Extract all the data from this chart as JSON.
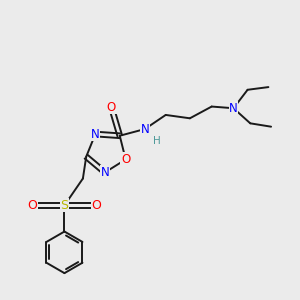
{
  "bg_color": "#ebebeb",
  "bond_color": "#1a1a1a",
  "atom_colors": {
    "O": "#ff0000",
    "N": "#0000ff",
    "S": "#b8b800",
    "H": "#4d9999",
    "C": "#1a1a1a"
  },
  "font_size_atom": 8.5,
  "line_width": 1.4,
  "figsize": [
    3.0,
    3.0
  ],
  "dpi": 100
}
